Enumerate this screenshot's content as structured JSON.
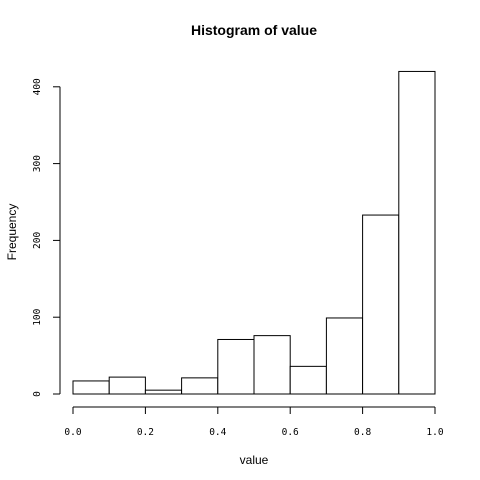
{
  "chart_data": {
    "type": "bar",
    "title": "Histogram of value",
    "xlabel": "value",
    "ylabel": "Frequency",
    "bins": [
      {
        "start": 0.0,
        "end": 0.1,
        "count": 17
      },
      {
        "start": 0.1,
        "end": 0.2,
        "count": 22
      },
      {
        "start": 0.2,
        "end": 0.3,
        "count": 5
      },
      {
        "start": 0.3,
        "end": 0.4,
        "count": 21
      },
      {
        "start": 0.4,
        "end": 0.5,
        "count": 71
      },
      {
        "start": 0.5,
        "end": 0.6,
        "count": 76
      },
      {
        "start": 0.6,
        "end": 0.7,
        "count": 36
      },
      {
        "start": 0.7,
        "end": 0.8,
        "count": 99
      },
      {
        "start": 0.8,
        "end": 0.9,
        "count": 233
      },
      {
        "start": 0.9,
        "end": 1.0,
        "count": 420
      }
    ],
    "xlim": [
      0.0,
      1.0
    ],
    "ylim": [
      0,
      420
    ],
    "xticks": [
      "0.0",
      "0.2",
      "0.4",
      "0.6",
      "0.8",
      "1.0"
    ],
    "yticks": [
      "0",
      "100",
      "200",
      "300",
      "400"
    ],
    "grid": false,
    "colors": {
      "bar_fill": "#ffffff",
      "bar_stroke": "#000000"
    }
  }
}
